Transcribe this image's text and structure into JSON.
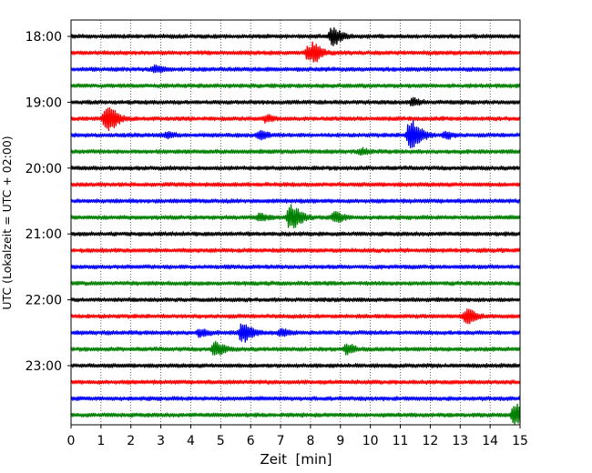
{
  "chart_data": {
    "type": "line",
    "title": "",
    "xlabel": "Zeit  [min]",
    "ylabel": "UTC (Lokalzeit = UTC + 02:00)",
    "xlim": [
      0,
      15
    ],
    "x_ticks": [
      "0",
      "1",
      "2",
      "3",
      "4",
      "5",
      "6",
      "7",
      "8",
      "9",
      "10",
      "11",
      "12",
      "13",
      "14",
      "15"
    ],
    "y_tick_labels": [
      "18:00",
      "19:00",
      "20:00",
      "21:00",
      "22:00",
      "23:00"
    ],
    "grid": "vertical dotted at each minute",
    "trace_colors": [
      "#000000",
      "#ff0000",
      "#0000ff",
      "#008000"
    ],
    "series": [
      {
        "start": "18:00",
        "color": "#000000",
        "events": [
          {
            "t": 8.7,
            "amp": 1.4
          }
        ]
      },
      {
        "start": "18:15",
        "color": "#ff0000",
        "events": [
          {
            "t": 7.9,
            "amp": 1.0
          },
          {
            "t": 8.1,
            "amp": 1.2
          }
        ]
      },
      {
        "start": "18:30",
        "color": "#0000ff",
        "events": [
          {
            "t": 2.8,
            "amp": 0.5
          }
        ]
      },
      {
        "start": "18:45",
        "color": "#008000",
        "events": []
      },
      {
        "start": "19:00",
        "color": "#000000",
        "events": [
          {
            "t": 11.4,
            "amp": 0.5
          }
        ]
      },
      {
        "start": "19:15",
        "color": "#ff0000",
        "events": [
          {
            "t": 1.15,
            "amp": 2.3
          },
          {
            "t": 6.5,
            "amp": 0.5
          }
        ]
      },
      {
        "start": "19:30",
        "color": "#0000ff",
        "events": [
          {
            "t": 3.2,
            "amp": 0.4
          },
          {
            "t": 6.3,
            "amp": 0.6
          },
          {
            "t": 11.3,
            "amp": 2.6
          },
          {
            "t": 12.5,
            "amp": 0.5
          }
        ]
      },
      {
        "start": "19:45",
        "color": "#008000",
        "events": [
          {
            "t": 9.7,
            "amp": 0.4
          }
        ]
      },
      {
        "start": "20:00",
        "color": "#000000",
        "events": []
      },
      {
        "start": "20:15",
        "color": "#ff0000",
        "events": []
      },
      {
        "start": "20:30",
        "color": "#0000ff",
        "events": []
      },
      {
        "start": "20:45",
        "color": "#008000",
        "events": [
          {
            "t": 6.3,
            "amp": 0.6
          },
          {
            "t": 7.3,
            "amp": 2.2
          },
          {
            "t": 8.8,
            "amp": 0.9
          }
        ]
      },
      {
        "start": "21:00",
        "color": "#000000",
        "events": []
      },
      {
        "start": "21:15",
        "color": "#ff0000",
        "events": []
      },
      {
        "start": "21:30",
        "color": "#0000ff",
        "events": []
      },
      {
        "start": "21:45",
        "color": "#008000",
        "events": []
      },
      {
        "start": "22:00",
        "color": "#000000",
        "events": []
      },
      {
        "start": "22:15",
        "color": "#ff0000",
        "events": [
          {
            "t": 13.2,
            "amp": 1.2
          }
        ]
      },
      {
        "start": "22:30",
        "color": "#0000ff",
        "events": [
          {
            "t": 4.3,
            "amp": 0.6
          },
          {
            "t": 5.7,
            "amp": 1.6
          },
          {
            "t": 7.0,
            "amp": 0.5
          }
        ]
      },
      {
        "start": "22:45",
        "color": "#008000",
        "events": [
          {
            "t": 4.8,
            "amp": 1.2
          },
          {
            "t": 9.2,
            "amp": 0.8
          }
        ]
      },
      {
        "start": "23:00",
        "color": "#000000",
        "events": []
      },
      {
        "start": "23:15",
        "color": "#ff0000",
        "events": []
      },
      {
        "start": "23:30",
        "color": "#0000ff",
        "events": []
      },
      {
        "start": "23:45",
        "color": "#008000",
        "events": [
          {
            "t": 14.8,
            "amp": 1.8
          }
        ]
      }
    ]
  }
}
